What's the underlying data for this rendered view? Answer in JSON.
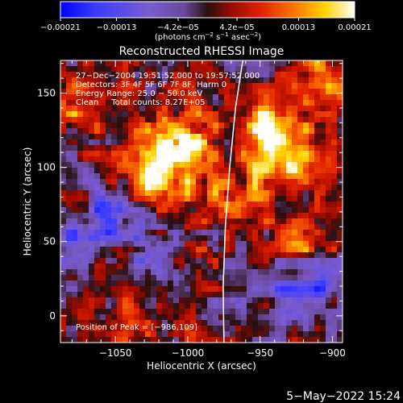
{
  "chart_data": {
    "type": "heatmap",
    "title": "Reconstructed RHESSI Image",
    "xlabel": "Heliocentric X (arcsec)",
    "ylabel": "Heliocentric Y (arcsec)",
    "xlim": [
      -1088,
      -893
    ],
    "ylim": [
      -18,
      172
    ],
    "x_ticks": [
      -1050,
      -1000,
      -950,
      -900
    ],
    "x_tick_labels": [
      "−1050",
      "−1000",
      "−950",
      "−900"
    ],
    "y_ticks": [
      0,
      50,
      100,
      150
    ],
    "y_tick_labels": [
      "0",
      "50",
      "100",
      "150"
    ],
    "colorbar": {
      "range": [
        -0.00021,
        0.00021
      ],
      "ticks": [
        -0.00021,
        -0.00013,
        -4.2e-05,
        4.2e-05,
        0.00013,
        0.00021
      ],
      "tick_labels": [
        "−0.00021",
        "−0.00013",
        "−4.2e−05",
        "4.2e−05",
        "0.00013",
        "0.00021"
      ],
      "units_text": "(photons cm",
      "units_sup1": "−2",
      "units_mid": " s",
      "units_sup2": "−1",
      "units_mid2": " asec",
      "units_sup3": "−2",
      "units_end": ")",
      "colors": [
        "#0000ff",
        "#5050ff",
        "#7a5cd0",
        "#6a4a9a",
        "#401010",
        "#d21000",
        "#ff6000",
        "#ffc000",
        "#ffffff"
      ]
    },
    "annotations": {
      "time_range": "27−Dec−2004 19:51:52.000 to 19:57:52.000",
      "detectors": "Detectors: 3F 4F 5F 6F 7F 8F, Harm 0",
      "energy_range": "Energy Range: 25.0 − 50.0 keV",
      "clean_line": "Clean     Total counts: 8.27E+05",
      "peak": "Position of Peak = [−986,109]"
    },
    "limb_curve": [
      [
        -975,
        -18
      ],
      [
        -975.5,
        20
      ],
      [
        -974,
        60
      ],
      [
        -971,
        100
      ],
      [
        -967,
        140
      ],
      [
        -962,
        172
      ]
    ],
    "intensity_blobs": [
      {
        "x": -935,
        "y": 105,
        "sigma": 18,
        "amp": 1.0
      },
      {
        "x": -943,
        "y": 130,
        "sigma": 12,
        "amp": 0.8
      },
      {
        "x": -1003,
        "y": 115,
        "sigma": 14,
        "amp": 0.95
      },
      {
        "x": -1033,
        "y": 112,
        "sigma": 14,
        "amp": 0.75
      },
      {
        "x": -1020,
        "y": 90,
        "sigma": 14,
        "amp": 0.7
      },
      {
        "x": -905,
        "y": 160,
        "sigma": 12,
        "amp": 0.8
      },
      {
        "x": -1070,
        "y": 140,
        "sigma": 15,
        "amp": 0.5
      },
      {
        "x": -980,
        "y": 80,
        "sigma": 12,
        "amp": 0.6
      },
      {
        "x": -960,
        "y": 70,
        "sigma": 10,
        "amp": 0.5
      },
      {
        "x": -920,
        "y": 55,
        "sigma": 12,
        "amp": 0.55
      },
      {
        "x": -1000,
        "y": 40,
        "sigma": 12,
        "amp": 0.45
      },
      {
        "x": -1050,
        "y": 30,
        "sigma": 10,
        "amp": 0.35
      },
      {
        "x": -1055,
        "y": 75,
        "sigma": 10,
        "amp": -0.4
      },
      {
        "x": -1070,
        "y": 55,
        "sigma": 14,
        "amp": -0.55
      },
      {
        "x": -1025,
        "y": 45,
        "sigma": 16,
        "amp": -0.5
      },
      {
        "x": -925,
        "y": 15,
        "sigma": 16,
        "amp": -0.6
      },
      {
        "x": -900,
        "y": 25,
        "sigma": 10,
        "amp": -0.45
      },
      {
        "x": -960,
        "y": 25,
        "sigma": 10,
        "amp": -0.3
      },
      {
        "x": -1040,
        "y": -5,
        "sigma": 12,
        "amp": 0.4
      },
      {
        "x": -985,
        "y": 160,
        "sigma": 10,
        "amp": 0.4
      }
    ]
  },
  "footer": {
    "date": "5−May−2022 15:24"
  }
}
